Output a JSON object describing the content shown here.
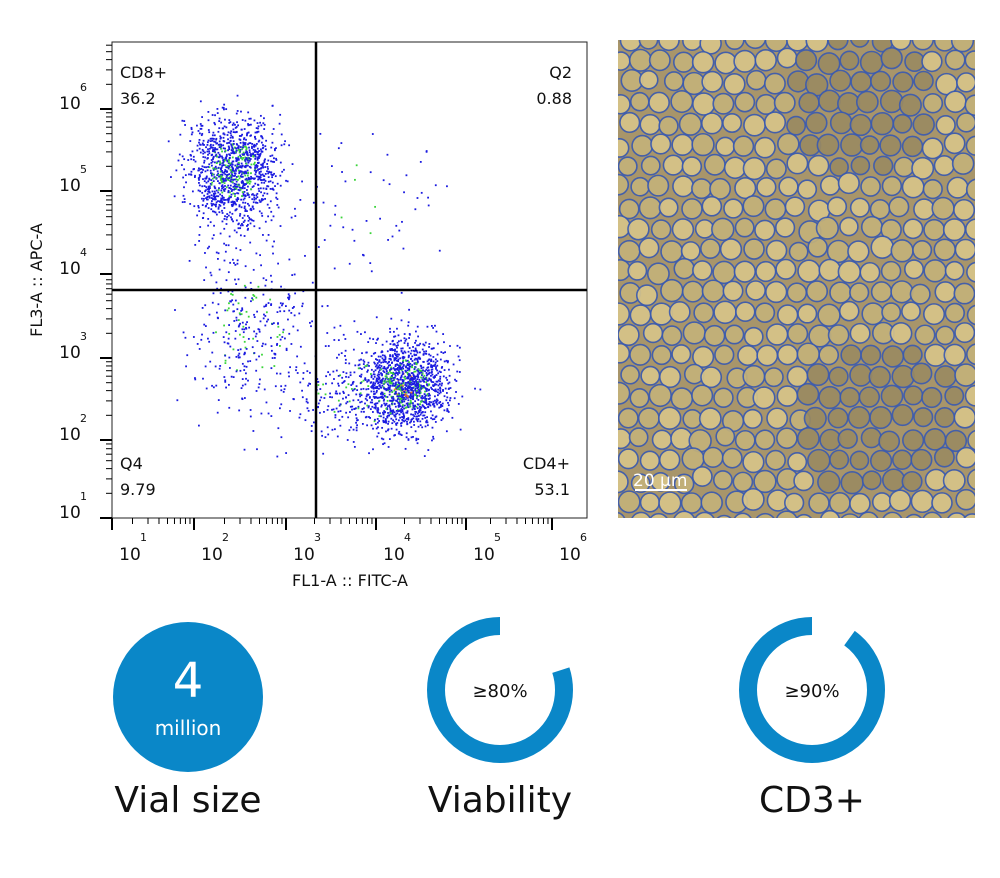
{
  "plot": {
    "x_axis_title": "FL1-A :: FITC-A",
    "y_axis_title": "FL3-A :: APC-A",
    "xticks": [
      {
        "base": "10",
        "exponent": "1"
      },
      {
        "base": "10",
        "exponent": "2"
      },
      {
        "base": "10",
        "exponent": "3"
      },
      {
        "base": "10",
        "exponent": "4"
      },
      {
        "base": "10",
        "exponent": "5"
      },
      {
        "base": "10",
        "exponent": "6"
      }
    ],
    "yticks": [
      {
        "base": "10",
        "exponent": "1"
      },
      {
        "base": "10",
        "exponent": "2"
      },
      {
        "base": "10",
        "exponent": "3"
      },
      {
        "base": "10",
        "exponent": "4"
      },
      {
        "base": "10",
        "exponent": "5"
      },
      {
        "base": "10",
        "exponent": "6"
      }
    ],
    "quadrants": [
      {
        "name": "CD8+",
        "value": "36.2"
      },
      {
        "name": "Q2",
        "value": "0.88"
      },
      {
        "name": "Q4",
        "value": "9.79"
      },
      {
        "name": "CD4+",
        "value": "53.1"
      }
    ]
  },
  "micrograph": {
    "scale_bar": "20 µm"
  },
  "vial": {
    "number": "4",
    "unit": "million",
    "caption": "Vial size"
  },
  "gauges": [
    {
      "value": 80,
      "label": "≥80%",
      "caption": "Viability"
    },
    {
      "value": 90,
      "label": "≥90%",
      "caption": "CD3+"
    }
  ]
}
